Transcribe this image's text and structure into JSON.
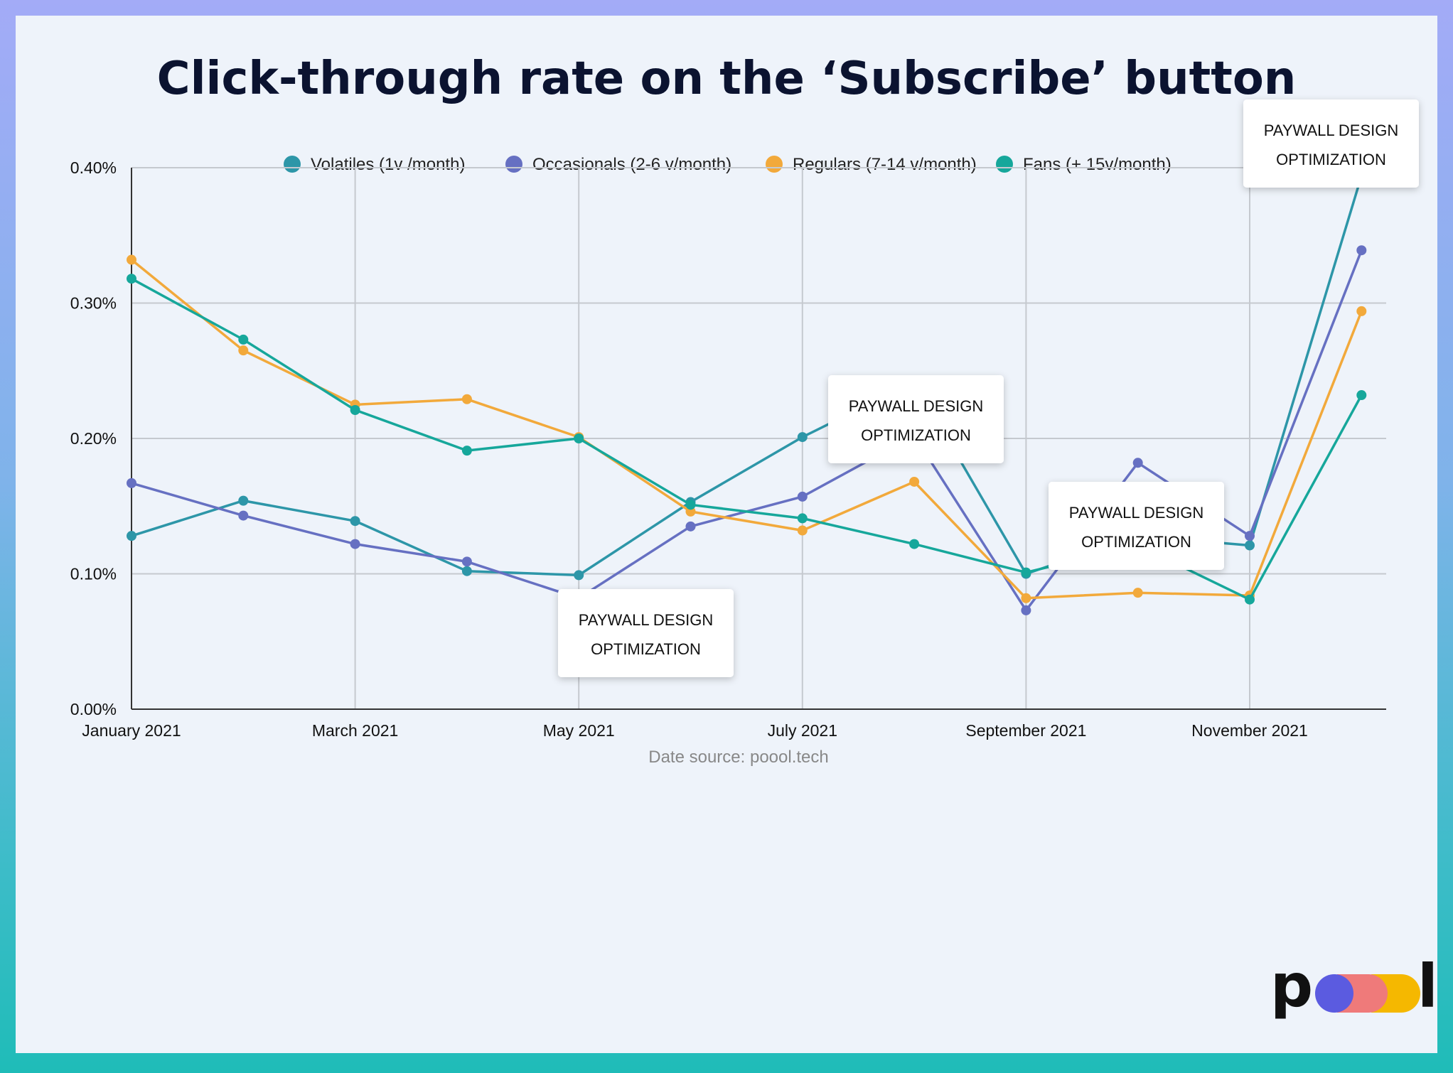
{
  "chart_data": {
    "type": "line",
    "title": "Click-through rate on the ‘Subscribe’ button",
    "x": [
      "January 2021",
      "February 2021",
      "March 2021",
      "April 2021",
      "May 2021",
      "June 2021",
      "July 2021",
      "August 2021",
      "September 2021",
      "October 2021",
      "November 2021",
      "December 2021"
    ],
    "x_tick_labels": [
      "January 2021",
      "March 2021",
      "May 2021",
      "July 2021",
      "September 2021",
      "November 2021"
    ],
    "y_tick_labels": [
      "0.00%",
      "0.10%",
      "0.20%",
      "0.30%",
      "0.40%"
    ],
    "ylim": [
      0,
      0.4
    ],
    "y_unit": "%",
    "grid": true,
    "legend_position": "top",
    "series": [
      {
        "name": "Volatiles (1v /month)",
        "color": "#2d96a8",
        "values": [
          0.128,
          0.154,
          0.139,
          0.102,
          0.099,
          0.153,
          0.201,
          0.242,
          0.1,
          0.128,
          0.121,
          0.394
        ]
      },
      {
        "name": "Occasionals (2-6 v/month)",
        "color": "#6670c2",
        "values": [
          0.167,
          0.143,
          0.122,
          0.109,
          0.082,
          0.135,
          0.157,
          0.202,
          0.073,
          0.182,
          0.128,
          0.339
        ]
      },
      {
        "name": "Regulars (7-14 v/month)",
        "color": "#f2a93b",
        "values": [
          0.332,
          0.265,
          0.225,
          0.229,
          0.201,
          0.146,
          0.132,
          0.168,
          0.082,
          0.086,
          0.084,
          0.294
        ]
      },
      {
        "name": "Fans (+ 15v/month)",
        "color": "#16a79b",
        "values": [
          0.318,
          0.273,
          0.221,
          0.191,
          0.2,
          0.151,
          0.141,
          0.122,
          0.101,
          0.121,
          0.081,
          0.232
        ]
      }
    ],
    "annotations": [
      {
        "line1": "PAYWALL DESIGN",
        "line2": "OPTIMIZATION",
        "x": "May 2021"
      },
      {
        "line1": "PAYWALL DESIGN",
        "line2": "OPTIMIZATION",
        "x": "August 2021"
      },
      {
        "line1": "PAYWALL DESIGN",
        "line2": "OPTIMIZATION",
        "x": "October 2021"
      },
      {
        "line1": "PAYWALL DESIGN",
        "line2": "OPTIMIZATION",
        "x": "December 2021"
      }
    ],
    "source": "Date source: poool.tech"
  },
  "logo": {
    "text": "pool",
    "dot_colors": [
      "#5b5be0",
      "#ef7a7a",
      "#f5b800"
    ]
  }
}
